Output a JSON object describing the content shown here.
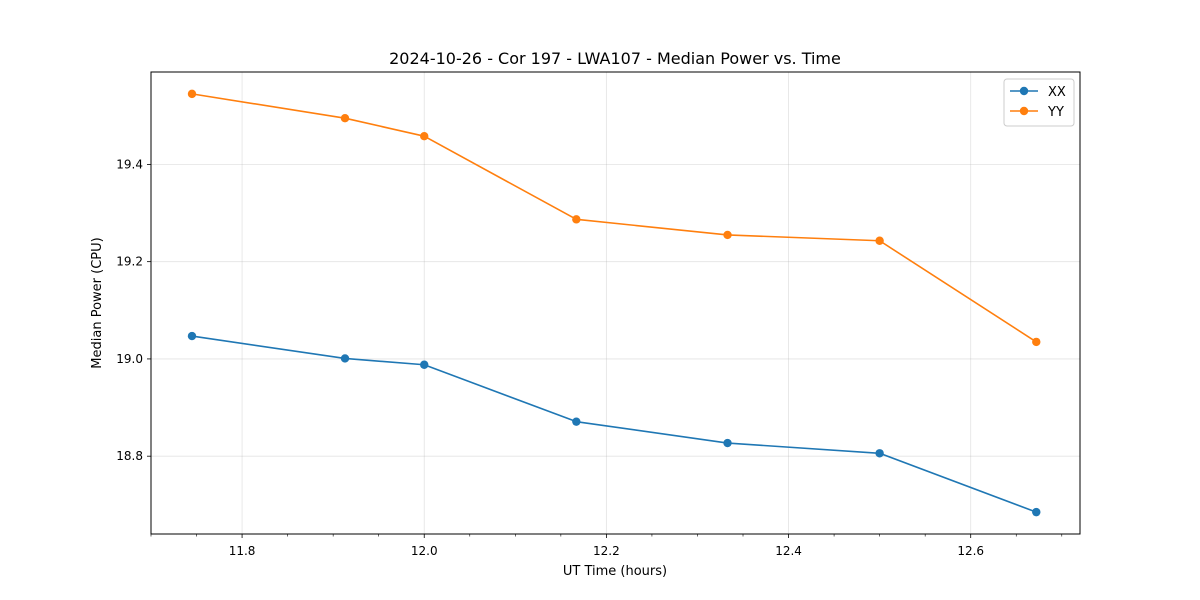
{
  "chart_data": {
    "type": "line",
    "title": "2024-10-26 - Cor 197 - LWA107 - Median Power vs. Time",
    "xlabel": "UT Time (hours)",
    "ylabel": "Median Power (CPU)",
    "xlim": [
      11.7,
      12.72
    ],
    "ylim": [
      18.64,
      19.59
    ],
    "xticks": [
      11.8,
      12.0,
      12.2,
      12.4,
      12.6
    ],
    "xtick_labels": [
      "11.8",
      "12.0",
      "12.2",
      "12.4",
      "12.6"
    ],
    "x_minor_step": 0.05,
    "yticks": [
      18.8,
      19.0,
      19.2,
      19.4
    ],
    "ytick_labels": [
      "18.8",
      "19.0",
      "19.2",
      "19.4"
    ],
    "grid": true,
    "legend_position": "top-right",
    "x": [
      11.745,
      11.913,
      12.0,
      12.167,
      12.333,
      12.5,
      12.672
    ],
    "series": [
      {
        "name": "XX",
        "color": "#1f77b4",
        "marker": "circle",
        "values": [
          19.047,
          19.001,
          18.988,
          18.871,
          18.827,
          18.806,
          18.685
        ]
      },
      {
        "name": "YY",
        "color": "#ff7f0e",
        "marker": "circle",
        "values": [
          19.545,
          19.495,
          19.458,
          19.287,
          19.255,
          19.243,
          19.035
        ]
      }
    ]
  }
}
